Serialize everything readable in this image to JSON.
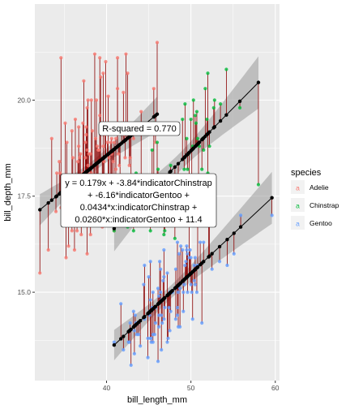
{
  "chart_data": {
    "type": "scatter",
    "xlabel": "bill_length_mm",
    "ylabel": "bill_depth_mm",
    "xlim": [
      31.5,
      60.5
    ],
    "ylim": [
      12.7,
      22.5
    ],
    "xticks": [
      40,
      50,
      60
    ],
    "yticks": [
      15.0,
      17.5,
      20.0
    ],
    "xtick_labels": [
      "40",
      "50",
      "60"
    ],
    "ytick_labels": [
      "15.0",
      "17.5",
      "20.0"
    ],
    "grid": true,
    "legend": {
      "title": "species",
      "position": "right",
      "entries": [
        "Adelie",
        "Chinstrap",
        "Gentoo"
      ]
    },
    "colors": {
      "panel": "#ebebeb",
      "grid": "#ffffff",
      "Adelie": "#f8766d",
      "Chinstrap": "#00ba38",
      "Gentoo": "#619cff",
      "residual": "#8b0000",
      "fit": "#000000",
      "band": "#999999"
    },
    "model": {
      "slope": 0.179,
      "intercept": 11.4,
      "Chinstrap": {
        "offset": -3.84,
        "slope_adj": 0.0434
      },
      "Gentoo": {
        "offset": -6.16,
        "slope_adj": 0.026
      }
    },
    "series": [
      {
        "name": "Adelie",
        "fit_range": [
          32.1,
          46.0
        ],
        "points": [
          [
            32.1,
            15.5
          ],
          [
            33.1,
            16.1
          ],
          [
            33.5,
            19.0
          ],
          [
            34.0,
            17.1
          ],
          [
            34.1,
            18.1
          ],
          [
            34.4,
            18.4
          ],
          [
            34.5,
            18.1
          ],
          [
            34.6,
            21.1
          ],
          [
            34.6,
            17.2
          ],
          [
            35.0,
            17.9
          ],
          [
            35.1,
            19.4
          ],
          [
            35.2,
            15.9
          ],
          [
            35.3,
            18.9
          ],
          [
            35.5,
            17.5
          ],
          [
            35.5,
            16.2
          ],
          [
            35.6,
            17.5
          ],
          [
            35.7,
            16.9
          ],
          [
            35.7,
            18.0
          ],
          [
            35.9,
            19.2
          ],
          [
            35.9,
            16.6
          ],
          [
            36.0,
            18.5
          ],
          [
            36.0,
            17.9
          ],
          [
            36.0,
            17.8
          ],
          [
            36.0,
            17.1
          ],
          [
            36.2,
            16.1
          ],
          [
            36.2,
            17.2
          ],
          [
            36.2,
            17.3
          ],
          [
            36.3,
            19.5
          ],
          [
            36.4,
            17.0
          ],
          [
            36.4,
            17.1
          ],
          [
            36.5,
            16.6
          ],
          [
            36.5,
            18.0
          ],
          [
            36.6,
            17.8
          ],
          [
            36.6,
            18.4
          ],
          [
            36.7,
            19.3
          ],
          [
            36.7,
            18.8
          ],
          [
            36.8,
            18.5
          ],
          [
            36.9,
            18.6
          ],
          [
            37.0,
            16.9
          ],
          [
            37.0,
            16.5
          ],
          [
            37.2,
            18.1
          ],
          [
            37.2,
            19.4
          ],
          [
            37.3,
            20.5
          ],
          [
            37.3,
            17.8
          ],
          [
            37.3,
            16.8
          ],
          [
            37.5,
            18.9
          ],
          [
            37.5,
            18.5
          ],
          [
            37.6,
            19.1
          ],
          [
            37.6,
            17.0
          ],
          [
            37.6,
            19.3
          ],
          [
            37.7,
            18.7
          ],
          [
            37.7,
            16.0
          ],
          [
            37.7,
            19.8
          ],
          [
            37.8,
            18.3
          ],
          [
            37.8,
            20.0
          ],
          [
            37.8,
            18.1
          ],
          [
            37.9,
            18.6
          ],
          [
            38.1,
            18.6
          ],
          [
            38.1,
            17.0
          ],
          [
            38.1,
            16.5
          ],
          [
            38.1,
            17.6
          ],
          [
            38.2,
            18.1
          ],
          [
            38.2,
            20.0
          ],
          [
            38.3,
            19.2
          ],
          [
            38.5,
            17.9
          ],
          [
            38.6,
            21.2
          ],
          [
            38.6,
            17.2
          ],
          [
            38.6,
            17.0
          ],
          [
            38.7,
            19.0
          ],
          [
            38.8,
            17.2
          ],
          [
            38.8,
            20.0
          ],
          [
            38.8,
            17.6
          ],
          [
            38.9,
            17.8
          ],
          [
            38.9,
            18.8
          ],
          [
            39.0,
            17.1
          ],
          [
            39.0,
            18.7
          ],
          [
            39.1,
            18.7
          ],
          [
            39.2,
            19.6
          ],
          [
            39.2,
            21.1
          ],
          [
            39.3,
            20.6
          ],
          [
            39.5,
            17.4
          ],
          [
            39.5,
            16.7
          ],
          [
            39.6,
            17.7
          ],
          [
            39.6,
            20.7
          ],
          [
            39.6,
            18.8
          ],
          [
            39.7,
            18.4
          ],
          [
            39.7,
            17.7
          ],
          [
            39.8,
            19.1
          ],
          [
            39.9,
            21.0
          ],
          [
            40.1,
            18.9
          ],
          [
            40.2,
            17.0
          ],
          [
            40.2,
            20.1
          ],
          [
            40.3,
            18.0
          ],
          [
            40.3,
            18.5
          ],
          [
            40.5,
            17.9
          ],
          [
            40.5,
            18.9
          ],
          [
            40.6,
            18.6
          ],
          [
            40.6,
            17.2
          ],
          [
            40.6,
            19.0
          ],
          [
            40.7,
            17.0
          ],
          [
            40.8,
            18.4
          ],
          [
            40.9,
            16.6
          ],
          [
            40.9,
            18.9
          ],
          [
            41.1,
            17.6
          ],
          [
            41.1,
            19.0
          ],
          [
            41.1,
            18.2
          ],
          [
            41.3,
            20.3
          ],
          [
            41.3,
            21.1
          ],
          [
            41.4,
            18.6
          ],
          [
            41.5,
            18.3
          ],
          [
            41.6,
            18.0
          ],
          [
            41.8,
            19.4
          ],
          [
            42.0,
            20.2
          ],
          [
            42.1,
            19.1
          ],
          [
            42.2,
            18.5
          ],
          [
            42.3,
            21.2
          ],
          [
            42.5,
            20.7
          ],
          [
            42.7,
            18.3
          ],
          [
            42.8,
            18.5
          ],
          [
            42.9,
            17.6
          ],
          [
            43.1,
            19.2
          ],
          [
            43.2,
            19.0
          ],
          [
            44.1,
            19.7
          ],
          [
            44.1,
            18.0
          ],
          [
            45.6,
            20.3
          ],
          [
            45.8,
            18.9
          ],
          [
            46.0,
            21.5
          ]
        ]
      },
      {
        "name": "Chinstrap",
        "fit_range": [
          40.9,
          58.0
        ],
        "points": [
          [
            40.9,
            16.6
          ],
          [
            42.4,
            17.3
          ],
          [
            42.5,
            16.7
          ],
          [
            43.2,
            16.6
          ],
          [
            43.5,
            18.1
          ],
          [
            45.2,
            16.6
          ],
          [
            45.2,
            17.8
          ],
          [
            45.4,
            18.7
          ],
          [
            45.5,
            17.0
          ],
          [
            45.6,
            19.4
          ],
          [
            45.7,
            17.3
          ],
          [
            45.9,
            17.1
          ],
          [
            46.0,
            18.9
          ],
          [
            46.1,
            18.2
          ],
          [
            46.2,
            17.5
          ],
          [
            46.4,
            17.8
          ],
          [
            46.5,
            17.9
          ],
          [
            46.6,
            17.8
          ],
          [
            46.7,
            17.9
          ],
          [
            46.8,
            16.5
          ],
          [
            46.9,
            16.6
          ],
          [
            47.0,
            17.3
          ],
          [
            47.5,
            16.8
          ],
          [
            47.6,
            18.3
          ],
          [
            48.1,
            16.4
          ],
          [
            48.5,
            17.5
          ],
          [
            49.0,
            19.5
          ],
          [
            49.2,
            18.2
          ],
          [
            49.3,
            19.9
          ],
          [
            49.5,
            19.0
          ],
          [
            49.6,
            18.2
          ],
          [
            49.7,
            18.6
          ],
          [
            49.8,
            17.3
          ],
          [
            50.0,
            19.5
          ],
          [
            50.1,
            17.9
          ],
          [
            50.2,
            18.8
          ],
          [
            50.3,
            20.0
          ],
          [
            50.5,
            19.6
          ],
          [
            50.6,
            19.4
          ],
          [
            50.7,
            19.7
          ],
          [
            50.8,
            19.0
          ],
          [
            50.9,
            17.9
          ],
          [
            51.0,
            18.8
          ],
          [
            51.3,
            18.2
          ],
          [
            51.4,
            19.0
          ],
          [
            51.5,
            18.7
          ],
          [
            51.7,
            20.3
          ],
          [
            51.9,
            19.5
          ],
          [
            52.0,
            18.1
          ],
          [
            52.0,
            20.7
          ],
          [
            52.2,
            18.8
          ],
          [
            52.7,
            19.8
          ],
          [
            52.8,
            20.0
          ],
          [
            53.5,
            19.9
          ],
          [
            54.2,
            20.8
          ],
          [
            55.8,
            19.8
          ],
          [
            58.0,
            17.8
          ]
        ]
      },
      {
        "name": "Gentoo",
        "fit_range": [
          40.9,
          59.6
        ],
        "points": [
          [
            40.9,
            13.7
          ],
          [
            41.7,
            14.7
          ],
          [
            42.0,
            13.5
          ],
          [
            42.6,
            13.7
          ],
          [
            42.7,
            13.7
          ],
          [
            42.8,
            14.2
          ],
          [
            42.9,
            13.1
          ],
          [
            43.2,
            14.5
          ],
          [
            43.3,
            13.4
          ],
          [
            43.3,
            14.0
          ],
          [
            43.4,
            14.4
          ],
          [
            43.5,
            14.2
          ],
          [
            43.6,
            13.9
          ],
          [
            43.8,
            13.9
          ],
          [
            44.0,
            13.6
          ],
          [
            44.4,
            15.2
          ],
          [
            44.5,
            14.3
          ],
          [
            44.5,
            15.7
          ],
          [
            44.9,
            13.3
          ],
          [
            44.9,
            13.8
          ],
          [
            45.0,
            15.4
          ],
          [
            45.1,
            14.5
          ],
          [
            45.1,
            14.4
          ],
          [
            45.2,
            13.8
          ],
          [
            45.2,
            14.8
          ],
          [
            45.2,
            15.8
          ],
          [
            45.3,
            13.7
          ],
          [
            45.3,
            13.8
          ],
          [
            45.4,
            14.6
          ],
          [
            45.5,
            13.7
          ],
          [
            45.5,
            13.9
          ],
          [
            45.5,
            15.0
          ],
          [
            45.7,
            13.9
          ],
          [
            45.8,
            14.2
          ],
          [
            45.8,
            14.6
          ],
          [
            46.1,
            13.2
          ],
          [
            46.1,
            15.1
          ],
          [
            46.2,
            14.1
          ],
          [
            46.2,
            14.9
          ],
          [
            46.2,
            14.4
          ],
          [
            46.3,
            15.8
          ],
          [
            46.4,
            15.0
          ],
          [
            46.4,
            15.6
          ],
          [
            46.5,
            13.5
          ],
          [
            46.5,
            14.4
          ],
          [
            46.5,
            14.8
          ],
          [
            46.6,
            14.2
          ],
          [
            46.7,
            15.3
          ],
          [
            46.8,
            14.3
          ],
          [
            46.8,
            15.4
          ],
          [
            46.8,
            16.1
          ],
          [
            46.9,
            14.6
          ],
          [
            47.2,
            13.7
          ],
          [
            47.2,
            15.5
          ],
          [
            47.3,
            13.8
          ],
          [
            47.4,
            14.6
          ],
          [
            47.5,
            14.0
          ],
          [
            47.5,
            15.0
          ],
          [
            47.6,
            14.5
          ],
          [
            47.7,
            15.0
          ],
          [
            47.8,
            15.0
          ],
          [
            48.1,
            15.1
          ],
          [
            48.2,
            14.3
          ],
          [
            48.2,
            15.6
          ],
          [
            48.4,
            14.4
          ],
          [
            48.4,
            14.6
          ],
          [
            48.4,
            16.3
          ],
          [
            48.5,
            14.1
          ],
          [
            48.5,
            15.0
          ],
          [
            48.6,
            16.0
          ],
          [
            48.7,
            14.1
          ],
          [
            48.7,
            15.1
          ],
          [
            48.8,
            16.2
          ],
          [
            49.0,
            16.1
          ],
          [
            49.1,
            14.5
          ],
          [
            49.1,
            15.0
          ],
          [
            49.2,
            15.2
          ],
          [
            49.3,
            15.7
          ],
          [
            49.4,
            15.8
          ],
          [
            49.5,
            16.1
          ],
          [
            49.5,
            16.2
          ],
          [
            49.6,
            15.0
          ],
          [
            49.6,
            16.0
          ],
          [
            49.8,
            15.9
          ],
          [
            49.8,
            16.8
          ],
          [
            49.9,
            16.1
          ],
          [
            50.0,
            15.2
          ],
          [
            50.0,
            15.9
          ],
          [
            50.1,
            15.0
          ],
          [
            50.2,
            14.3
          ],
          [
            50.4,
            15.3
          ],
          [
            50.4,
            15.7
          ],
          [
            50.5,
            15.2
          ],
          [
            50.5,
            15.9
          ],
          [
            50.7,
            15.0
          ],
          [
            50.8,
            15.7
          ],
          [
            50.8,
            17.3
          ],
          [
            51.1,
            16.3
          ],
          [
            51.3,
            14.2
          ],
          [
            51.5,
            16.3
          ],
          [
            52.1,
            17.0
          ],
          [
            52.2,
            17.1
          ],
          [
            52.5,
            15.6
          ],
          [
            53.4,
            15.8
          ],
          [
            54.3,
            15.7
          ],
          [
            55.1,
            16.0
          ],
          [
            55.9,
            17.0
          ],
          [
            59.6,
            17.0
          ]
        ]
      }
    ],
    "annotations": {
      "rsquared": "R-squared = 0.770",
      "equation": [
        "y = 0.179x + -3.84*indicatorChinstrap",
        "+ -6.16*indicatorGentoo +",
        "0.0434*x:indicatorChinstrap +",
        "0.0260*x:indicatorGentoo + 11.4"
      ]
    }
  }
}
